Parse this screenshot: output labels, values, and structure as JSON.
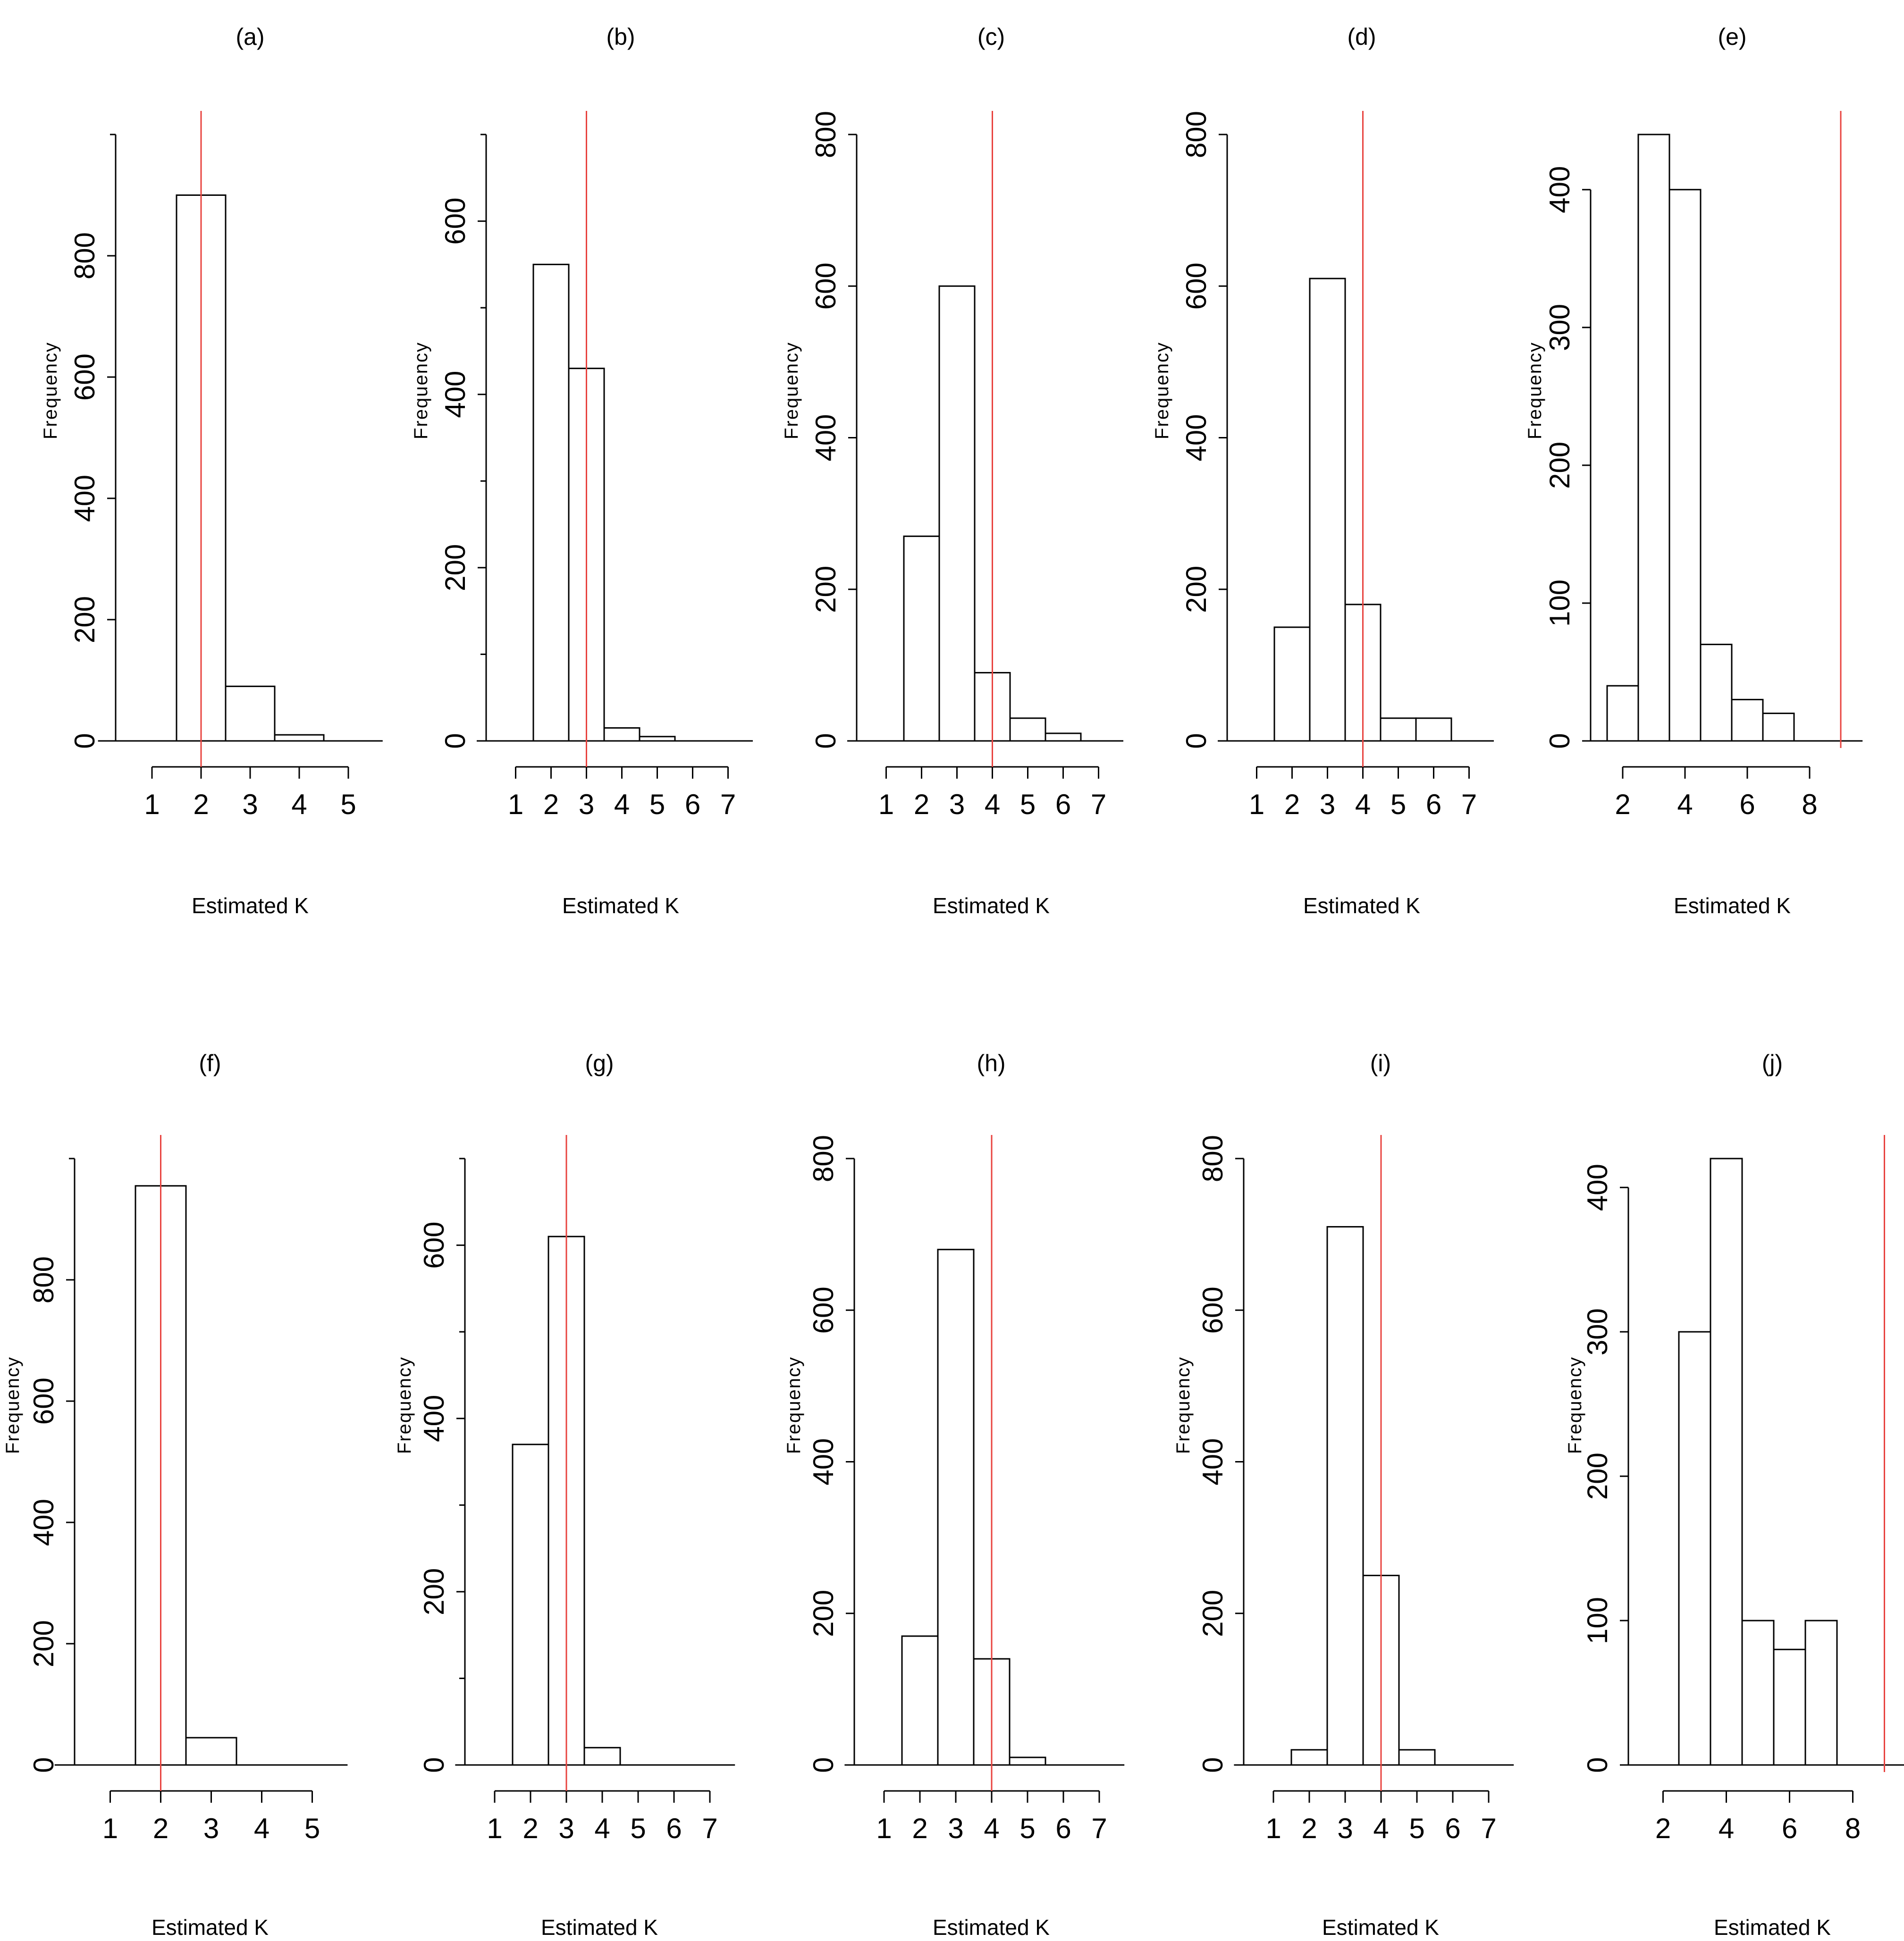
{
  "figure": {
    "ylabel": "Frequency",
    "xlabel": "Estimated K",
    "ref_color": "#e8433f"
  },
  "chart_data": [
    {
      "type": "bar",
      "panel": "(a)",
      "title": "(a)",
      "xlabel": "Estimated K",
      "ylabel": "Frequency",
      "bins": [
        1,
        2,
        3,
        4,
        5
      ],
      "values": [
        0,
        900,
        90,
        10,
        0
      ],
      "xlim": [
        1,
        5
      ],
      "xticks": [
        1,
        2,
        3,
        4,
        5
      ],
      "ylim": [
        0,
        1000
      ],
      "yticks": [
        0,
        200,
        400,
        600,
        800
      ],
      "true_k": 2
    },
    {
      "type": "bar",
      "panel": "(b)",
      "title": "(b)",
      "xlabel": "Estimated K",
      "ylabel": "Frequency",
      "bins": [
        1,
        2,
        3,
        4,
        5,
        6,
        7
      ],
      "values": [
        0,
        550,
        430,
        15,
        5,
        0,
        0
      ],
      "xlim": [
        1,
        7
      ],
      "xticks": [
        1,
        2,
        3,
        4,
        5,
        6,
        7
      ],
      "ylim": [
        0,
        700
      ],
      "yticks": [
        0,
        200,
        400,
        600
      ],
      "true_k": 3
    },
    {
      "type": "bar",
      "panel": "(c)",
      "title": "(c)",
      "xlabel": "Estimated K",
      "ylabel": "Frequency",
      "bins": [
        1,
        2,
        3,
        4,
        5,
        6,
        7
      ],
      "values": [
        0,
        270,
        600,
        90,
        30,
        10,
        0
      ],
      "xlim": [
        1,
        7
      ],
      "xticks": [
        1,
        2,
        3,
        4,
        5,
        6,
        7
      ],
      "ylim": [
        0,
        800
      ],
      "yticks": [
        0,
        200,
        400,
        600,
        800
      ],
      "true_k": 4
    },
    {
      "type": "bar",
      "panel": "(d)",
      "title": "(d)",
      "xlabel": "Estimated K",
      "ylabel": "Frequency",
      "bins": [
        1,
        2,
        3,
        4,
        5,
        6,
        7
      ],
      "values": [
        0,
        150,
        610,
        180,
        30,
        30,
        0
      ],
      "xlim": [
        1,
        7
      ],
      "xticks": [
        1,
        2,
        3,
        4,
        5,
        6,
        7
      ],
      "ylim": [
        0,
        800
      ],
      "yticks": [
        0,
        200,
        400,
        600,
        800
      ],
      "true_k": 4
    },
    {
      "type": "bar",
      "panel": "(e)",
      "title": "(e)",
      "xlabel": "Estimated K",
      "ylabel": "Frequency",
      "bins": [
        2,
        3,
        4,
        5,
        6,
        7,
        8,
        9
      ],
      "values": [
        40,
        440,
        400,
        70,
        30,
        20,
        0,
        0
      ],
      "xlim": [
        2,
        8
      ],
      "xticks": [
        2,
        4,
        6,
        8
      ],
      "ylim": [
        0,
        440
      ],
      "yticks": [
        0,
        100,
        200,
        300,
        400
      ],
      "true_k": 9
    },
    {
      "type": "bar",
      "panel": "(f)",
      "title": "(f)",
      "xlabel": "Estimated K",
      "ylabel": "Frequency",
      "bins": [
        1,
        2,
        3,
        4,
        5
      ],
      "values": [
        0,
        955,
        45,
        0,
        0
      ],
      "xlim": [
        1,
        5
      ],
      "xticks": [
        1,
        2,
        3,
        4,
        5
      ],
      "ylim": [
        0,
        1000
      ],
      "yticks": [
        0,
        200,
        400,
        600,
        800
      ],
      "true_k": 2
    },
    {
      "type": "bar",
      "panel": "(g)",
      "title": "(g)",
      "xlabel": "Estimated K",
      "ylabel": "Frequency",
      "bins": [
        1,
        2,
        3,
        4,
        5,
        6,
        7
      ],
      "values": [
        0,
        370,
        610,
        20,
        0,
        0,
        0
      ],
      "xlim": [
        1,
        7
      ],
      "xticks": [
        1,
        2,
        3,
        4,
        5,
        6,
        7
      ],
      "ylim": [
        0,
        700
      ],
      "yticks": [
        0,
        200,
        400,
        600
      ],
      "true_k": 3
    },
    {
      "type": "bar",
      "panel": "(h)",
      "title": "(h)",
      "xlabel": "Estimated K",
      "ylabel": "Frequency",
      "bins": [
        1,
        2,
        3,
        4,
        5,
        6,
        7
      ],
      "values": [
        0,
        170,
        680,
        140,
        10,
        0,
        0
      ],
      "xlim": [
        1,
        7
      ],
      "xticks": [
        1,
        2,
        3,
        4,
        5,
        6,
        7
      ],
      "ylim": [
        0,
        800
      ],
      "yticks": [
        0,
        200,
        400,
        600,
        800
      ],
      "true_k": 4
    },
    {
      "type": "bar",
      "panel": "(i)",
      "title": "(i)",
      "xlabel": "Estimated K",
      "ylabel": "Frequency",
      "bins": [
        1,
        2,
        3,
        4,
        5,
        6,
        7
      ],
      "values": [
        0,
        20,
        710,
        250,
        20,
        0,
        0
      ],
      "xlim": [
        1,
        7
      ],
      "xticks": [
        1,
        2,
        3,
        4,
        5,
        6,
        7
      ],
      "ylim": [
        0,
        800
      ],
      "yticks": [
        0,
        200,
        400,
        600,
        800
      ],
      "true_k": 4
    },
    {
      "type": "bar",
      "panel": "(j)",
      "title": "(j)",
      "xlabel": "Estimated K",
      "ylabel": "Frequency",
      "bins": [
        2,
        3,
        4,
        5,
        6,
        7,
        8,
        9
      ],
      "values": [
        0,
        300,
        420,
        100,
        80,
        100,
        0,
        0
      ],
      "xlim": [
        2,
        8
      ],
      "xticks": [
        2,
        4,
        6,
        8
      ],
      "ylim": [
        0,
        420
      ],
      "yticks": [
        0,
        100,
        200,
        300,
        400
      ],
      "true_k": 9
    }
  ]
}
